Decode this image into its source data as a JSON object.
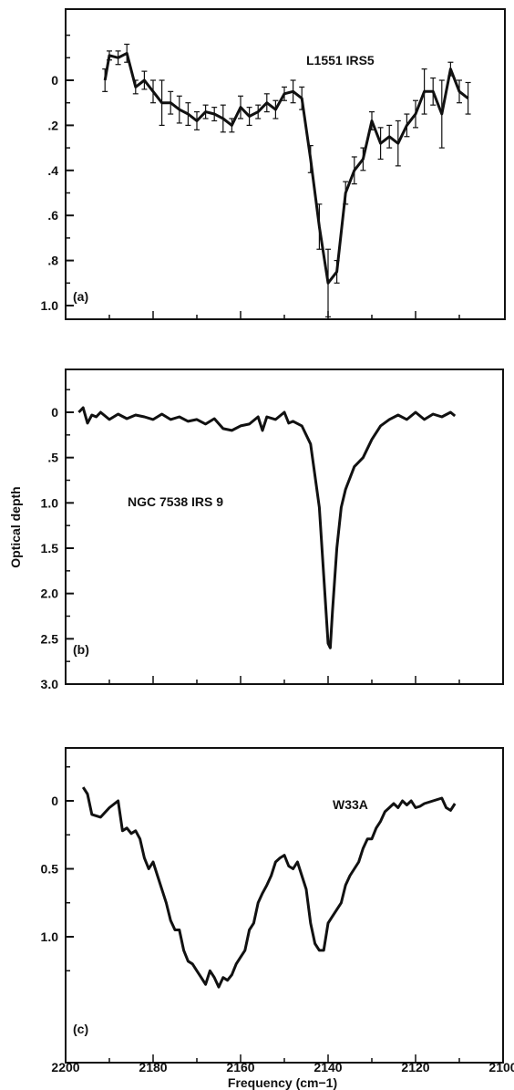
{
  "figure": {
    "ylabel": "Optical depth",
    "xlabel": "Frequency (cm−1)",
    "x_ticks": [
      "2200",
      "2180",
      "2160",
      "2140",
      "2120",
      "2100"
    ]
  },
  "chart_data": [
    {
      "type": "line",
      "panel_label": "(a)",
      "title": "L1551 IRS5",
      "xlim": [
        2200,
        2100
      ],
      "ylim": [
        1.1,
        -0.2
      ],
      "y_tick_labels": [
        "0",
        ".2",
        ".4",
        ".6",
        ".8",
        "1.0"
      ],
      "series": [
        {
          "x": [
            2191,
            2190,
            2188,
            2186,
            2184,
            2182,
            2180,
            2178,
            2176,
            2174,
            2172,
            2170,
            2168,
            2166,
            2164,
            2162,
            2160,
            2158,
            2156,
            2154,
            2152,
            2150,
            2148,
            2146,
            2144,
            2142,
            2140,
            2138,
            2136,
            2134,
            2132,
            2130,
            2128,
            2126,
            2124,
            2122,
            2120,
            2118,
            2116,
            2114,
            2112,
            2110,
            2108
          ],
          "y": [
            0.0,
            -0.11,
            -0.1,
            -0.12,
            0.03,
            0.0,
            0.05,
            0.1,
            0.1,
            0.13,
            0.15,
            0.18,
            0.14,
            0.15,
            0.17,
            0.2,
            0.12,
            0.16,
            0.14,
            0.1,
            0.13,
            0.06,
            0.05,
            0.08,
            0.35,
            0.65,
            0.9,
            0.85,
            0.5,
            0.4,
            0.35,
            0.18,
            0.28,
            0.25,
            0.28,
            0.2,
            0.15,
            0.05,
            0.05,
            0.15,
            -0.05,
            0.05,
            0.08
          ],
          "err": [
            0.05,
            0.02,
            0.03,
            0.04,
            0.03,
            0.04,
            0.05,
            0.1,
            0.05,
            0.06,
            0.05,
            0.04,
            0.03,
            0.03,
            0.06,
            0.03,
            0.05,
            0.04,
            0.03,
            0.04,
            0.04,
            0.03,
            0.05,
            0.05,
            0.06,
            0.1,
            0.15,
            0.05,
            0.05,
            0.06,
            0.05,
            0.04,
            0.07,
            0.05,
            0.1,
            0.05,
            0.06,
            0.1,
            0.06,
            0.15,
            0.03,
            0.05,
            0.07
          ]
        }
      ]
    },
    {
      "type": "line",
      "panel_label": "(b)",
      "title": "NGC 7538 IRS 9",
      "xlim": [
        2200,
        2100
      ],
      "ylim": [
        3.0,
        -0.4
      ],
      "y_tick_labels": [
        "0",
        ".5",
        "1.0",
        "1.5",
        "2.0",
        "2.5",
        "3.0"
      ],
      "series": [
        {
          "x": [
            2197,
            2196,
            2195,
            2194,
            2193,
            2192,
            2190,
            2188,
            2186,
            2184,
            2182,
            2180,
            2178,
            2176,
            2174,
            2172,
            2170,
            2168,
            2166,
            2164,
            2162,
            2160,
            2158,
            2156,
            2155,
            2154,
            2152,
            2150,
            2149,
            2148,
            2146,
            2144,
            2143,
            2142,
            2141,
            2140,
            2139.5,
            2139,
            2138,
            2137,
            2136,
            2134,
            2132,
            2130,
            2128,
            2126,
            2124,
            2122,
            2120,
            2118,
            2116,
            2114,
            2112,
            2111
          ],
          "y": [
            0.0,
            -0.05,
            0.12,
            0.03,
            0.05,
            0.0,
            0.08,
            0.02,
            0.07,
            0.03,
            0.05,
            0.08,
            0.02,
            0.08,
            0.05,
            0.1,
            0.08,
            0.13,
            0.07,
            0.18,
            0.2,
            0.15,
            0.13,
            0.05,
            0.2,
            0.05,
            0.08,
            0.0,
            0.12,
            0.1,
            0.15,
            0.35,
            0.7,
            1.05,
            1.8,
            2.55,
            2.6,
            2.2,
            1.5,
            1.05,
            0.85,
            0.6,
            0.5,
            0.3,
            0.15,
            0.08,
            0.03,
            0.08,
            0.0,
            0.08,
            0.02,
            0.05,
            0.0,
            0.04
          ]
        }
      ]
    },
    {
      "type": "line",
      "panel_label": "(c)",
      "title": "W33A",
      "xlim": [
        2200,
        2100
      ],
      "ylim": [
        1.4,
        -0.35
      ],
      "y_tick_labels": [
        "0",
        "0.5",
        "1.0"
      ],
      "series": [
        {
          "x": [
            2196,
            2195,
            2194,
            2192,
            2190,
            2188,
            2187,
            2186,
            2185,
            2184,
            2183,
            2182,
            2181,
            2180,
            2179,
            2178,
            2177,
            2176,
            2175,
            2174,
            2173,
            2172,
            2171,
            2170,
            2169,
            2168,
            2167,
            2166,
            2165,
            2164,
            2163,
            2162,
            2161,
            2160,
            2159,
            2158,
            2157,
            2156,
            2155,
            2154,
            2153,
            2152,
            2151,
            2150,
            2149,
            2148,
            2147,
            2146,
            2145,
            2144,
            2143,
            2142,
            2141,
            2140,
            2139,
            2138,
            2137,
            2136,
            2135,
            2134,
            2133,
            2132,
            2131,
            2130,
            2129,
            2128,
            2127,
            2126,
            2125,
            2124,
            2123,
            2122,
            2121,
            2120,
            2119,
            2118,
            2116,
            2114,
            2113,
            2112,
            2111
          ],
          "y": [
            -0.1,
            -0.05,
            0.1,
            0.12,
            0.05,
            0.0,
            0.22,
            0.2,
            0.24,
            0.22,
            0.28,
            0.42,
            0.5,
            0.45,
            0.55,
            0.65,
            0.75,
            0.88,
            0.95,
            0.95,
            1.1,
            1.18,
            1.2,
            1.25,
            1.3,
            1.35,
            1.25,
            1.3,
            1.37,
            1.3,
            1.32,
            1.28,
            1.2,
            1.15,
            1.1,
            0.95,
            0.9,
            0.75,
            0.68,
            0.62,
            0.55,
            0.45,
            0.42,
            0.4,
            0.48,
            0.5,
            0.45,
            0.55,
            0.65,
            0.9,
            1.05,
            1.1,
            1.1,
            0.9,
            0.85,
            0.8,
            0.75,
            0.62,
            0.55,
            0.5,
            0.45,
            0.35,
            0.28,
            0.28,
            0.2,
            0.15,
            0.08,
            0.05,
            0.02,
            0.05,
            0.0,
            0.03,
            0.0,
            0.05,
            0.04,
            0.02,
            0.0,
            -0.02,
            0.05,
            0.07,
            0.02
          ]
        }
      ]
    }
  ]
}
